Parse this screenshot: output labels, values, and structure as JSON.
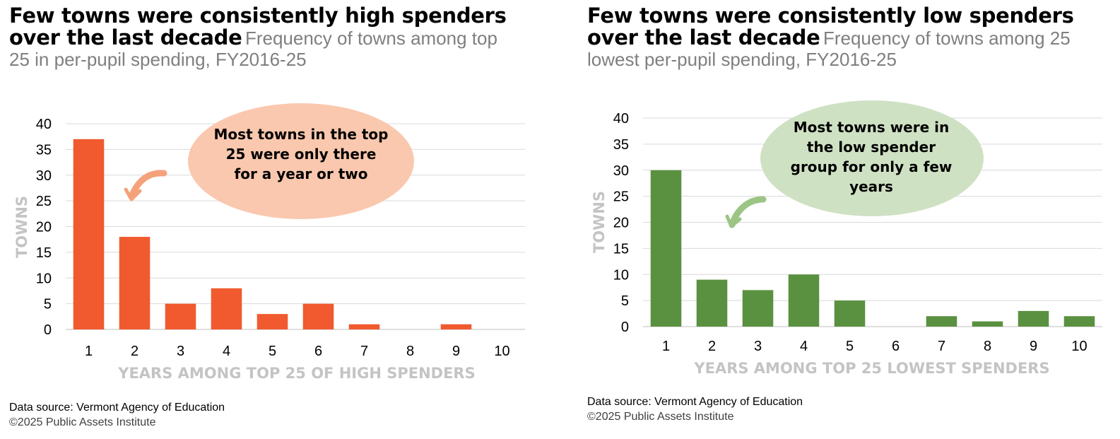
{
  "charts": [
    {
      "title_bold_line1": "Few towns were consistently high spenders",
      "title_bold_line2": "over the last decade",
      "subtitle_part1": "Frequency of towns among top",
      "subtitle_part2": "25 in per-pupil spending, FY2016-25",
      "annotation": "Most towns in the top 25 were only there for a year or two",
      "source": "Data source: Vermont Agency of Education",
      "copyright": "©2025 Public Assets Institute",
      "bar_color": "#f05a2e",
      "bubble_color": "#fac8ae",
      "arrow_color": "#f4a27b"
    },
    {
      "title_bold_line1": "Few towns were consistently low spenders",
      "title_bold_line2": "over the last decade",
      "subtitle_part1": "Frequency of towns among 25",
      "subtitle_part2": "lowest per-pupil spending, FY2016-25",
      "annotation": "Most towns were in the low spender group for only a few years",
      "source": "Data source: Vermont Agency of Education",
      "copyright": "©2025 Public Assets Institute",
      "bar_color": "#5a9140",
      "bubble_color": "#cfe1c3",
      "arrow_color": "#9cc585"
    }
  ],
  "chart_data": [
    {
      "type": "bar",
      "categories": [
        "1",
        "2",
        "3",
        "4",
        "5",
        "6",
        "7",
        "8",
        "9",
        "10"
      ],
      "values": [
        37,
        18,
        5,
        8,
        3,
        5,
        1,
        0,
        1,
        0
      ],
      "xlabel": "YEARS AMONG TOP 25 OF HIGH SPENDERS",
      "ylabel": "TOWNS",
      "ylim": [
        0,
        40
      ],
      "yticks": [
        0,
        5,
        10,
        15,
        20,
        25,
        30,
        35,
        40
      ],
      "grid": true
    },
    {
      "type": "bar",
      "categories": [
        "1",
        "2",
        "3",
        "4",
        "5",
        "6",
        "7",
        "8",
        "9",
        "10"
      ],
      "values": [
        30,
        9,
        7,
        10,
        5,
        0,
        2,
        1,
        3,
        2
      ],
      "xlabel": "YEARS AMONG TOP 25 LOWEST SPENDERS",
      "ylabel": "TOWNS",
      "ylim": [
        0,
        40
      ],
      "yticks": [
        0,
        5,
        10,
        15,
        20,
        25,
        30,
        35,
        40
      ],
      "grid": true
    }
  ]
}
